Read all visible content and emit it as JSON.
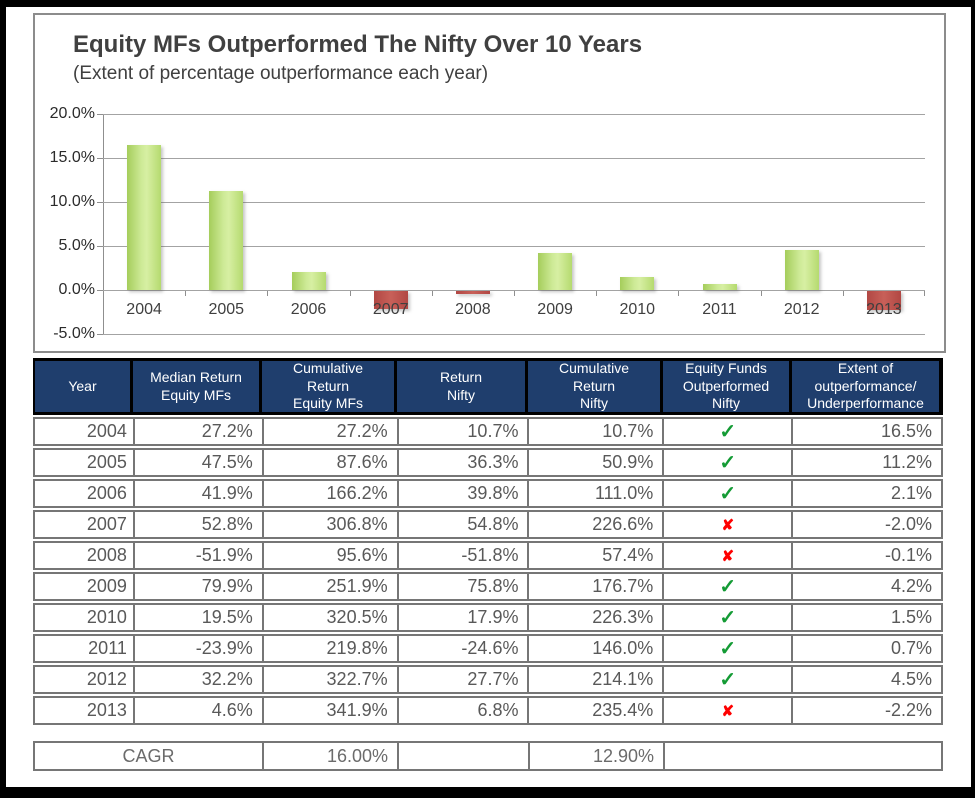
{
  "chart_data": {
    "type": "bar",
    "title": "Equity MFs Outperformed The Nifty Over 10 Years",
    "subtitle": "(Extent of percentage outperformance each year)",
    "categories": [
      "2004",
      "2005",
      "2006",
      "2007",
      "2008",
      "2009",
      "2010",
      "2011",
      "2012",
      "2013"
    ],
    "values": [
      16.5,
      11.2,
      2.1,
      -2.0,
      -0.1,
      4.2,
      1.5,
      0.7,
      4.5,
      -2.2
    ],
    "unit": "%",
    "ylim": [
      -5,
      20
    ],
    "ytick_values": [
      20,
      15,
      10,
      5,
      0,
      -5
    ],
    "ytick_labels": [
      "20.0%",
      "15.0%",
      "10.0%",
      "5.0%",
      "0.0%",
      "-5.0%"
    ],
    "grid": true,
    "legend": false,
    "colors": {
      "positive": "#a8cf5f",
      "negative": "#b84a46"
    }
  },
  "table": {
    "columns": [
      "Year",
      "Median Return\nEquity MFs",
      "Cumulative\nReturn\nEquity MFs",
      "Return\nNifty",
      "Cumulative\nReturn\nNifty",
      "Equity Funds\nOutperformed\nNifty",
      "Extent of\noutperformance/\nUnderperformance"
    ],
    "icons": {
      "check": "✓",
      "cross": "✘"
    },
    "rows": [
      {
        "year": "2004",
        "median_return_mfs": "27.2%",
        "cumulative_return_mfs": "27.2%",
        "return_nifty": "10.7%",
        "cumulative_return_nifty": "10.7%",
        "outperformed": true,
        "extent": "16.5%"
      },
      {
        "year": "2005",
        "median_return_mfs": "47.5%",
        "cumulative_return_mfs": "87.6%",
        "return_nifty": "36.3%",
        "cumulative_return_nifty": "50.9%",
        "outperformed": true,
        "extent": "11.2%"
      },
      {
        "year": "2006",
        "median_return_mfs": "41.9%",
        "cumulative_return_mfs": "166.2%",
        "return_nifty": "39.8%",
        "cumulative_return_nifty": "111.0%",
        "outperformed": true,
        "extent": "2.1%"
      },
      {
        "year": "2007",
        "median_return_mfs": "52.8%",
        "cumulative_return_mfs": "306.8%",
        "return_nifty": "54.8%",
        "cumulative_return_nifty": "226.6%",
        "outperformed": false,
        "extent": "-2.0%"
      },
      {
        "year": "2008",
        "median_return_mfs": "-51.9%",
        "cumulative_return_mfs": "95.6%",
        "return_nifty": "-51.8%",
        "cumulative_return_nifty": "57.4%",
        "outperformed": false,
        "extent": "-0.1%"
      },
      {
        "year": "2009",
        "median_return_mfs": "79.9%",
        "cumulative_return_mfs": "251.9%",
        "return_nifty": "75.8%",
        "cumulative_return_nifty": "176.7%",
        "outperformed": true,
        "extent": "4.2%"
      },
      {
        "year": "2010",
        "median_return_mfs": "19.5%",
        "cumulative_return_mfs": "320.5%",
        "return_nifty": "17.9%",
        "cumulative_return_nifty": "226.3%",
        "outperformed": true,
        "extent": "1.5%"
      },
      {
        "year": "2011",
        "median_return_mfs": "-23.9%",
        "cumulative_return_mfs": "219.8%",
        "return_nifty": "-24.6%",
        "cumulative_return_nifty": "146.0%",
        "outperformed": true,
        "extent": "0.7%"
      },
      {
        "year": "2012",
        "median_return_mfs": "32.2%",
        "cumulative_return_mfs": "322.7%",
        "return_nifty": "27.7%",
        "cumulative_return_nifty": "214.1%",
        "outperformed": true,
        "extent": "4.5%"
      },
      {
        "year": "2013",
        "median_return_mfs": "4.6%",
        "cumulative_return_mfs": "341.9%",
        "return_nifty": "6.8%",
        "cumulative_return_nifty": "235.4%",
        "outperformed": false,
        "extent": "-2.2%"
      }
    ]
  },
  "cagr": {
    "label": "CAGR",
    "equity_mfs_cagr": "16.00%",
    "nifty_cagr": "12.90%"
  },
  "colors": {
    "header_bg": "#1f3e6d",
    "header_text": "#ffffff",
    "check_green": "#149b35",
    "cross_red": "#fe0000",
    "body_text": "#595959",
    "grid": "#a3a3a3"
  }
}
